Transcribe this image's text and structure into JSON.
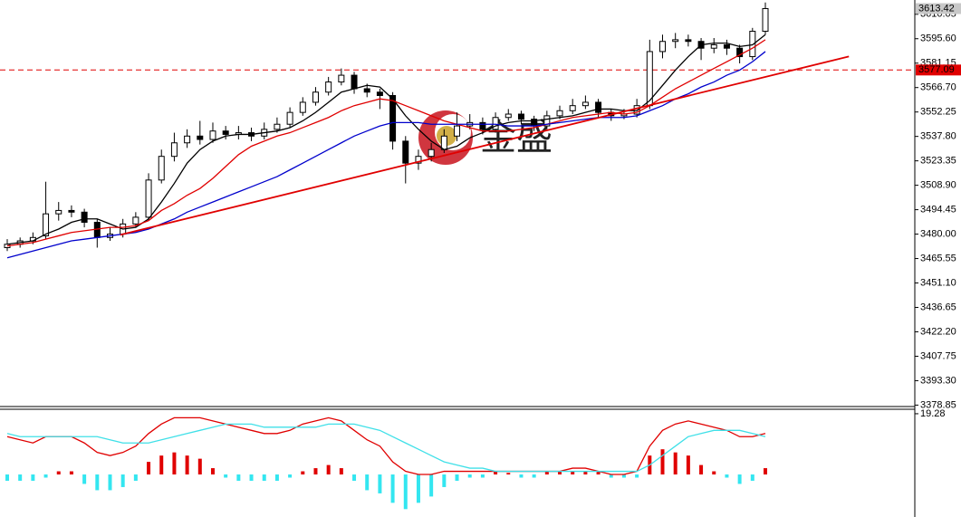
{
  "chart_data": [
    {
      "type": "candlestick",
      "watermark": "金盛",
      "open": [
        3472,
        3474,
        3476,
        3479,
        3492,
        3494,
        3493,
        3487,
        3478,
        3480,
        3486,
        3490,
        3512,
        3526,
        3534,
        3538,
        3536,
        3541,
        3539,
        3540,
        3538,
        3542,
        3545,
        3552,
        3558,
        3564,
        3570,
        3574,
        3566,
        3564,
        3562,
        3535,
        3522,
        3526,
        3530,
        3538,
        3544,
        3546,
        3542,
        3549,
        3551,
        3548,
        3544,
        3550,
        3553,
        3556,
        3558,
        3552,
        3550,
        3551,
        3556,
        3588,
        3594,
        3595,
        3594,
        3590,
        3592,
        3590,
        3585,
        3600
      ],
      "high": [
        3477,
        3478,
        3481,
        3511,
        3499,
        3497,
        3495,
        3489,
        3484,
        3489,
        3493,
        3516,
        3530,
        3540,
        3542,
        3547,
        3546,
        3544,
        3544,
        3543,
        3546,
        3549,
        3555,
        3561,
        3567,
        3573,
        3578,
        3576,
        3569,
        3566,
        3564,
        3538,
        3530,
        3534,
        3542,
        3552,
        3551,
        3549,
        3552,
        3554,
        3553,
        3550,
        3553,
        3556,
        3560,
        3562,
        3560,
        3554,
        3554,
        3560,
        3595,
        3598,
        3599,
        3598,
        3596,
        3596,
        3595,
        3592,
        3602,
        3617
      ],
      "low": [
        3470,
        3472,
        3474,
        3477,
        3488,
        3490,
        3484,
        3472,
        3476,
        3478,
        3484,
        3488,
        3510,
        3523,
        3531,
        3533,
        3534,
        3536,
        3536,
        3535,
        3536,
        3540,
        3543,
        3550,
        3556,
        3562,
        3568,
        3563,
        3561,
        3554,
        3530,
        3510,
        3518,
        3523,
        3528,
        3535,
        3542,
        3539,
        3540,
        3547,
        3545,
        3541,
        3542,
        3548,
        3551,
        3554,
        3549,
        3547,
        3548,
        3549,
        3554,
        3584,
        3590,
        3591,
        3583,
        3587,
        3586,
        3581,
        3583,
        3598
      ],
      "close": [
        3474,
        3476,
        3478,
        3492,
        3494,
        3493,
        3487,
        3478,
        3480,
        3486,
        3490,
        3512,
        3526,
        3534,
        3538,
        3536,
        3541,
        3539,
        3540,
        3538,
        3542,
        3545,
        3552,
        3558,
        3564,
        3570,
        3574,
        3566,
        3564,
        3562,
        3535,
        3522,
        3526,
        3530,
        3538,
        3544,
        3546,
        3542,
        3549,
        3551,
        3548,
        3544,
        3550,
        3553,
        3556,
        3558,
        3552,
        3550,
        3551,
        3556,
        3588,
        3594,
        3595,
        3594,
        3590,
        3592,
        3590,
        3585,
        3600,
        3613.42
      ],
      "series": [
        {
          "color": "#000000",
          "values": [
            3474,
            3475,
            3476,
            3480,
            3483,
            3487,
            3489,
            3489,
            3486,
            3483,
            3484,
            3489,
            3499,
            3510,
            3522,
            3530,
            3535,
            3538,
            3539,
            3539,
            3540,
            3541,
            3543,
            3547,
            3552,
            3558,
            3564,
            3566,
            3568,
            3567,
            3560,
            3550,
            3542,
            3535,
            3530,
            3532,
            3537,
            3540,
            3544,
            3546,
            3547,
            3547,
            3548,
            3549,
            3550,
            3552,
            3554,
            3554,
            3553,
            3553,
            3559,
            3568,
            3577,
            3585,
            3592,
            3593,
            3593,
            3591,
            3592,
            3598
          ]
        },
        {
          "color": "#e00000",
          "values": [
            3473,
            3474,
            3475,
            3477,
            3479,
            3481,
            3482,
            3483,
            3484,
            3484,
            3485,
            3488,
            3494,
            3498,
            3503,
            3507,
            3513,
            3520,
            3527,
            3532,
            3535,
            3538,
            3540,
            3543,
            3546,
            3549,
            3553,
            3556,
            3558,
            3560,
            3559,
            3556,
            3553,
            3550,
            3547,
            3545,
            3543,
            3541,
            3541,
            3541,
            3542,
            3543,
            3545,
            3547,
            3549,
            3550,
            3551,
            3552,
            3551,
            3552,
            3556,
            3561,
            3566,
            3570,
            3574,
            3578,
            3582,
            3586,
            3590,
            3595
          ]
        },
        {
          "color": "#0000cc",
          "values": [
            3466,
            3468,
            3470,
            3472,
            3474,
            3476,
            3477,
            3478,
            3479,
            3480,
            3481,
            3483,
            3486,
            3489,
            3493,
            3496,
            3499,
            3502,
            3505,
            3508,
            3511,
            3514,
            3518,
            3522,
            3526,
            3530,
            3534,
            3538,
            3541,
            3544,
            3546,
            3546,
            3546,
            3545,
            3545,
            3545,
            3545,
            3545,
            3545,
            3544,
            3544,
            3544,
            3545,
            3546,
            3547,
            3548,
            3549,
            3549,
            3549,
            3550,
            3553,
            3556,
            3560,
            3563,
            3567,
            3570,
            3574,
            3577,
            3582,
            3588
          ]
        }
      ],
      "trendline": {
        "x": [
          8.8,
          65.5
        ],
        "y": [
          3479.6,
          3585.1
        ],
        "color": "#e00000"
      },
      "hline": {
        "value": 3577.09,
        "color": "#e00000"
      },
      "ylim": [
        3378,
        3618.5
      ],
      "yticks": [
        3610.05,
        {
          "value": 3595.6,
          "label": "3595.60"
        },
        3581.15,
        {
          "value": 3566.7,
          "label": "3566.70"
        },
        3552.25,
        {
          "value": 3537.8,
          "label": "3537.80"
        },
        3523.35,
        {
          "value": 3508.9,
          "label": "3508.90"
        },
        3494.45,
        {
          "value": 3480,
          "label": "3480.00"
        },
        3465.55,
        {
          "value": 3451.1,
          "label": "3451.10"
        },
        3436.65,
        {
          "value": 3422.2,
          "label": "3422.20"
        },
        3407.75,
        {
          "value": 3393.3,
          "label": "3393.30"
        },
        3378.85
      ]
    },
    {
      "type": "macd",
      "histogram": [
        -2,
        -2,
        -2,
        -1,
        1,
        1,
        -3,
        -5,
        -5,
        -4,
        -2,
        4,
        6,
        7,
        6,
        5,
        2,
        -1,
        -2,
        -2,
        -2,
        -2,
        -1,
        1,
        2,
        3,
        2,
        -2,
        -5,
        -6,
        -9,
        -11,
        -9,
        -7,
        -4,
        -2,
        -1,
        -1,
        1,
        0.5,
        -1,
        -1,
        1,
        1,
        1,
        1,
        1,
        -1,
        -1,
        -1,
        6,
        8,
        7,
        6,
        3,
        1,
        -1,
        -3,
        -2,
        2
      ],
      "hist_colors": {
        "up": "#e00000",
        "down": "#33e6f0"
      },
      "series": [
        {
          "color": "#e00000",
          "values": [
            12,
            11,
            10,
            12,
            12,
            12,
            10,
            7,
            6,
            7,
            9,
            13,
            16,
            18,
            18,
            18,
            17,
            16,
            15,
            14,
            13,
            13,
            14,
            16,
            17,
            18,
            17,
            14,
            11,
            9,
            4,
            1,
            0,
            0,
            1,
            1,
            1,
            1,
            1,
            1,
            1,
            1,
            1,
            1,
            2,
            2,
            1,
            0,
            0,
            1,
            9,
            14,
            16,
            17,
            16,
            15,
            14,
            12,
            12,
            13
          ]
        },
        {
          "color": "#40e0e8",
          "values": [
            13,
            12,
            12,
            12,
            12,
            12,
            12,
            12,
            11,
            10,
            10,
            10,
            11,
            12,
            13,
            14,
            15,
            16,
            16,
            16,
            15,
            15,
            15,
            15,
            15,
            16,
            16,
            16,
            15,
            14,
            12,
            10,
            8,
            6,
            4,
            3,
            2,
            2,
            1,
            1,
            1,
            1,
            1,
            1,
            1,
            1,
            1,
            1,
            1,
            1,
            3,
            6,
            9,
            12,
            13,
            14,
            14,
            14,
            13,
            12
          ]
        }
      ],
      "ylim": [
        -13.5,
        20.7
      ],
      "yticks": [
        19.28
      ]
    }
  ]
}
